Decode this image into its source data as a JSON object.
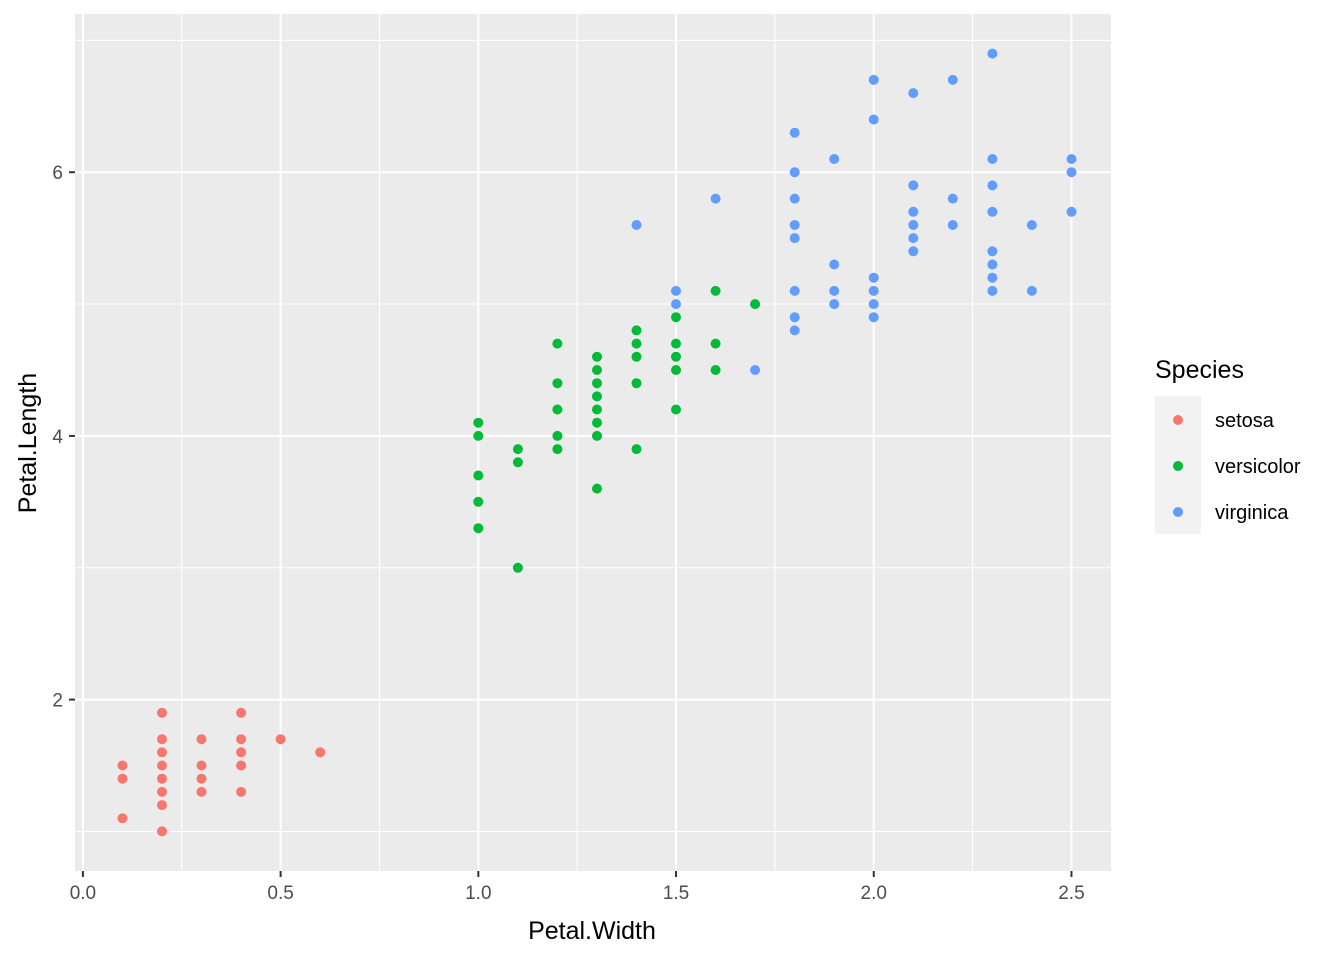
{
  "chart_data": {
    "type": "scatter",
    "title": "",
    "xlabel": "Petal.Width",
    "ylabel": "Petal.Length",
    "xlim": [
      -0.02,
      2.6
    ],
    "ylim": [
      0.7,
      7.2
    ],
    "x_ticks": [
      0.0,
      0.5,
      1.0,
      1.5,
      2.0,
      2.5
    ],
    "x_tick_labels": [
      "0.0",
      "0.5",
      "1.0",
      "1.5",
      "2.0",
      "2.5"
    ],
    "y_ticks": [
      2,
      4,
      6
    ],
    "y_tick_labels": [
      "2",
      "4",
      "6"
    ],
    "x_minor_ticks": [
      0.25,
      0.75,
      1.25,
      1.75,
      2.25
    ],
    "y_minor_ticks": [
      1,
      3,
      5,
      7
    ],
    "grid": true,
    "background": "#ebebeb",
    "legend": {
      "title": "Species",
      "position": "right"
    },
    "series": [
      {
        "name": "setosa",
        "color": "#f8766d",
        "points": [
          [
            0.1,
            1.5
          ],
          [
            0.1,
            1.4
          ],
          [
            0.1,
            1.1
          ],
          [
            0.2,
            1.9
          ],
          [
            0.2,
            1.7
          ],
          [
            0.2,
            1.6
          ],
          [
            0.2,
            1.5
          ],
          [
            0.2,
            1.4
          ],
          [
            0.2,
            1.3
          ],
          [
            0.2,
            1.2
          ],
          [
            0.2,
            1.0
          ],
          [
            0.3,
            1.7
          ],
          [
            0.3,
            1.5
          ],
          [
            0.3,
            1.4
          ],
          [
            0.3,
            1.3
          ],
          [
            0.4,
            1.9
          ],
          [
            0.4,
            1.7
          ],
          [
            0.4,
            1.6
          ],
          [
            0.4,
            1.5
          ],
          [
            0.4,
            1.3
          ],
          [
            0.5,
            1.7
          ],
          [
            0.6,
            1.6
          ]
        ]
      },
      {
        "name": "versicolor",
        "color": "#00ba38",
        "points": [
          [
            1.0,
            4.1
          ],
          [
            1.0,
            4.0
          ],
          [
            1.0,
            3.7
          ],
          [
            1.0,
            3.5
          ],
          [
            1.0,
            3.3
          ],
          [
            1.1,
            3.9
          ],
          [
            1.1,
            3.8
          ],
          [
            1.1,
            3.0
          ],
          [
            1.2,
            4.7
          ],
          [
            1.2,
            4.4
          ],
          [
            1.2,
            4.2
          ],
          [
            1.2,
            4.0
          ],
          [
            1.2,
            3.9
          ],
          [
            1.3,
            4.6
          ],
          [
            1.3,
            4.5
          ],
          [
            1.3,
            4.4
          ],
          [
            1.3,
            4.3
          ],
          [
            1.3,
            4.2
          ],
          [
            1.3,
            4.1
          ],
          [
            1.3,
            4.0
          ],
          [
            1.3,
            3.6
          ],
          [
            1.4,
            4.8
          ],
          [
            1.4,
            4.7
          ],
          [
            1.4,
            4.6
          ],
          [
            1.4,
            4.4
          ],
          [
            1.4,
            3.9
          ],
          [
            1.5,
            4.9
          ],
          [
            1.5,
            4.7
          ],
          [
            1.5,
            4.6
          ],
          [
            1.5,
            4.5
          ],
          [
            1.5,
            4.2
          ],
          [
            1.6,
            5.1
          ],
          [
            1.6,
            4.7
          ],
          [
            1.6,
            4.5
          ],
          [
            1.7,
            5.0
          ]
        ]
      },
      {
        "name": "virginica",
        "color": "#619cff",
        "points": [
          [
            1.4,
            5.6
          ],
          [
            1.5,
            5.1
          ],
          [
            1.5,
            5.0
          ],
          [
            1.6,
            5.8
          ],
          [
            1.7,
            4.5
          ],
          [
            1.8,
            6.3
          ],
          [
            1.8,
            6.0
          ],
          [
            1.8,
            5.8
          ],
          [
            1.8,
            5.6
          ],
          [
            1.8,
            5.5
          ],
          [
            1.8,
            5.1
          ],
          [
            1.8,
            4.9
          ],
          [
            1.8,
            4.8
          ],
          [
            1.9,
            6.1
          ],
          [
            1.9,
            5.3
          ],
          [
            1.9,
            5.1
          ],
          [
            1.9,
            5.0
          ],
          [
            2.0,
            6.7
          ],
          [
            2.0,
            6.4
          ],
          [
            2.0,
            5.2
          ],
          [
            2.0,
            5.1
          ],
          [
            2.0,
            5.0
          ],
          [
            2.0,
            4.9
          ],
          [
            2.1,
            6.6
          ],
          [
            2.1,
            5.9
          ],
          [
            2.1,
            5.7
          ],
          [
            2.1,
            5.6
          ],
          [
            2.1,
            5.5
          ],
          [
            2.1,
            5.4
          ],
          [
            2.2,
            6.7
          ],
          [
            2.2,
            5.8
          ],
          [
            2.2,
            5.6
          ],
          [
            2.3,
            6.9
          ],
          [
            2.3,
            6.1
          ],
          [
            2.3,
            5.9
          ],
          [
            2.3,
            5.7
          ],
          [
            2.3,
            5.4
          ],
          [
            2.3,
            5.3
          ],
          [
            2.3,
            5.2
          ],
          [
            2.3,
            5.1
          ],
          [
            2.4,
            5.6
          ],
          [
            2.4,
            5.1
          ],
          [
            2.5,
            6.1
          ],
          [
            2.5,
            6.0
          ],
          [
            2.5,
            5.7
          ]
        ]
      }
    ]
  }
}
